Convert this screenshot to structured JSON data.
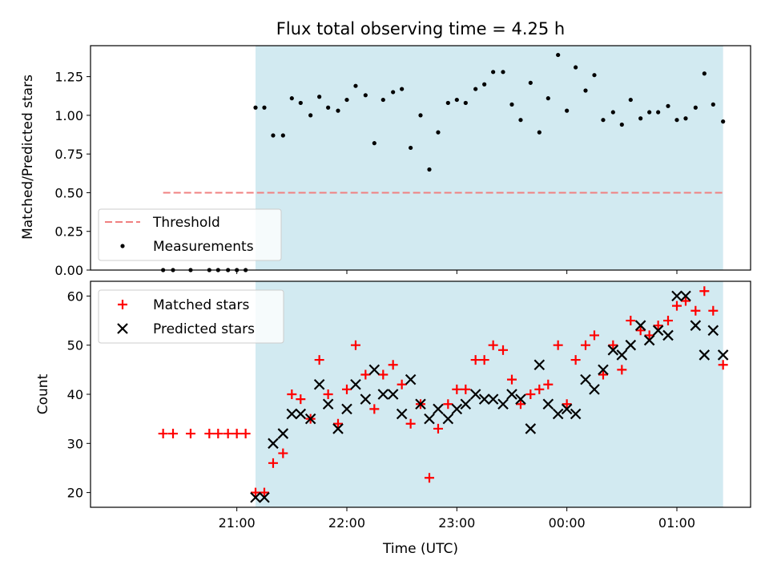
{
  "chart_data": [
    {
      "type": "scatter",
      "title": "Flux total observing time = 4.25 h",
      "ylabel": "Matched/Predicted stars",
      "xlabel": "",
      "ylim": [
        0,
        1.45
      ],
      "yticks": [
        "0.00",
        "0.25",
        "0.50",
        "0.75",
        "1.00",
        "1.25"
      ],
      "ytick_values": [
        0,
        0.25,
        0.5,
        0.75,
        1.0,
        1.25
      ],
      "shaded_region": {
        "x_start": 21.17,
        "x_end": 25.42,
        "color": "#add8e6"
      },
      "threshold": {
        "name": "Threshold",
        "y": 0.5,
        "x_start": 20.33,
        "x_end": 25.42,
        "color": "#f08080"
      },
      "legend": {
        "position": "lower-left",
        "entries": [
          "Threshold",
          "Measurements"
        ]
      },
      "series": [
        {
          "name": "Measurements",
          "x": [
            20.33,
            20.42,
            20.58,
            20.75,
            20.83,
            20.92,
            21.0,
            21.08,
            21.17,
            21.25,
            21.33,
            21.42,
            21.5,
            21.58,
            21.67,
            21.75,
            21.83,
            21.92,
            22.0,
            22.08,
            22.17,
            22.25,
            22.33,
            22.42,
            22.5,
            22.58,
            22.67,
            22.75,
            22.83,
            22.92,
            23.0,
            23.08,
            23.17,
            23.25,
            23.33,
            23.42,
            23.5,
            23.58,
            23.67,
            23.75,
            23.83,
            23.92,
            24.0,
            24.08,
            24.17,
            24.25,
            24.33,
            24.42,
            24.5,
            24.58,
            24.67,
            24.75,
            24.83,
            24.92,
            25.0,
            25.08,
            25.17,
            25.25,
            25.33,
            25.42
          ],
          "y": [
            0,
            0,
            0,
            0,
            0,
            0,
            0,
            0,
            1.05,
            1.05,
            0.87,
            0.87,
            1.11,
            1.08,
            1.0,
            1.12,
            1.05,
            1.03,
            1.1,
            1.19,
            1.13,
            0.82,
            1.1,
            1.15,
            1.17,
            0.79,
            1.0,
            0.65,
            0.89,
            1.08,
            1.1,
            1.08,
            1.17,
            1.2,
            1.28,
            1.28,
            1.07,
            0.97,
            1.21,
            0.89,
            1.11,
            1.39,
            1.03,
            1.31,
            1.16,
            1.26,
            0.97,
            1.02,
            0.94,
            1.1,
            0.98,
            1.02,
            1.02,
            1.06,
            0.97,
            0.98,
            1.05,
            1.27,
            1.07,
            0.96
          ]
        }
      ]
    },
    {
      "type": "scatter",
      "title": "",
      "ylabel": "Count",
      "xlabel": "Time (UTC)",
      "xlim": [
        19.67,
        25.67
      ],
      "xticks": [
        "21:00",
        "22:00",
        "23:00",
        "00:00",
        "01:00"
      ],
      "xtick_values": [
        21,
        22,
        23,
        24,
        25
      ],
      "ylim": [
        17,
        63
      ],
      "yticks": [
        "20",
        "30",
        "40",
        "50",
        "60"
      ],
      "ytick_values": [
        20,
        30,
        40,
        50,
        60
      ],
      "shaded_region": {
        "x_start": 21.17,
        "x_end": 25.42,
        "color": "#add8e6"
      },
      "legend": {
        "position": "top-left",
        "entries": [
          "Matched stars",
          "Predicted stars"
        ]
      },
      "series": [
        {
          "name": "Matched stars",
          "marker": "+",
          "color": "#ff0000",
          "x": [
            20.33,
            20.42,
            20.58,
            20.75,
            20.83,
            20.92,
            21.0,
            21.08,
            21.17,
            21.25,
            21.33,
            21.42,
            21.5,
            21.58,
            21.67,
            21.75,
            21.83,
            21.92,
            22.0,
            22.08,
            22.17,
            22.25,
            22.33,
            22.42,
            22.5,
            22.58,
            22.67,
            22.75,
            22.83,
            22.92,
            23.0,
            23.08,
            23.17,
            23.25,
            23.33,
            23.42,
            23.5,
            23.58,
            23.67,
            23.75,
            23.83,
            23.92,
            24.0,
            24.08,
            24.17,
            24.25,
            24.33,
            24.42,
            24.5,
            24.58,
            24.67,
            24.75,
            24.83,
            24.92,
            25.0,
            25.08,
            25.17,
            25.25,
            25.33,
            25.42
          ],
          "y": [
            32,
            32,
            32,
            32,
            32,
            32,
            32,
            32,
            20,
            20,
            26,
            28,
            40,
            39,
            35,
            47,
            40,
            34,
            41,
            50,
            44,
            37,
            44,
            46,
            42,
            34,
            38,
            23,
            33,
            38,
            41,
            41,
            47,
            47,
            50,
            49,
            43,
            38,
            40,
            41,
            42,
            50,
            38,
            47,
            50,
            52,
            44,
            50,
            45,
            55,
            53,
            52,
            54,
            55,
            58,
            59,
            57,
            61,
            57,
            46
          ]
        },
        {
          "name": "Predicted stars",
          "marker": "x",
          "color": "#000000",
          "x": [
            21.17,
            21.25,
            21.33,
            21.42,
            21.5,
            21.58,
            21.67,
            21.75,
            21.83,
            21.92,
            22.0,
            22.08,
            22.17,
            22.25,
            22.33,
            22.42,
            22.5,
            22.58,
            22.67,
            22.75,
            22.83,
            22.92,
            23.0,
            23.08,
            23.17,
            23.25,
            23.33,
            23.42,
            23.5,
            23.58,
            23.67,
            23.75,
            23.83,
            23.92,
            24.0,
            24.08,
            24.17,
            24.25,
            24.33,
            24.42,
            24.5,
            24.58,
            24.67,
            24.75,
            24.83,
            24.92,
            25.0,
            25.08,
            25.17,
            25.25,
            25.33,
            25.42
          ],
          "y": [
            19,
            19,
            30,
            32,
            36,
            36,
            35,
            42,
            38,
            33,
            37,
            42,
            39,
            45,
            40,
            40,
            36,
            43,
            38,
            35,
            37,
            35,
            37,
            38,
            40,
            39,
            39,
            38,
            40,
            39,
            33,
            46,
            38,
            36,
            37,
            36,
            43,
            41,
            45,
            49,
            48,
            50,
            54,
            51,
            53,
            52,
            60,
            60,
            54,
            48,
            53,
            48
          ]
        }
      ]
    }
  ]
}
